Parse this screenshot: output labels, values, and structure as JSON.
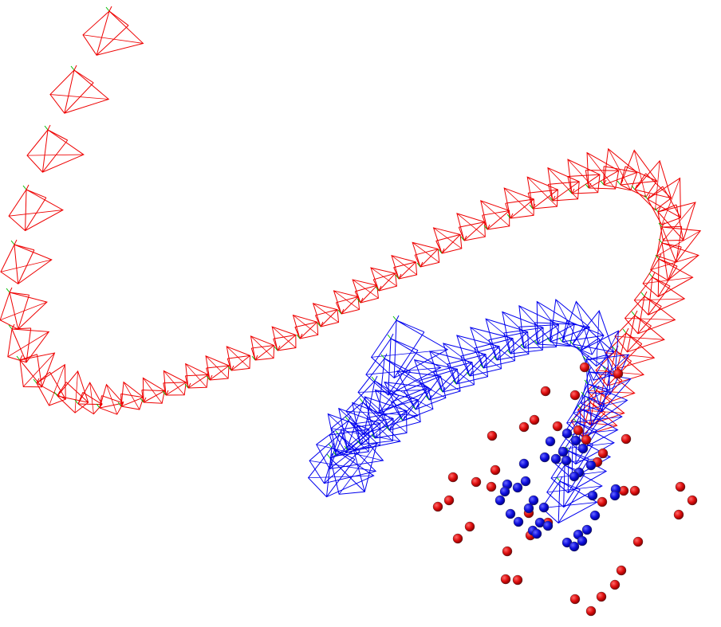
{
  "scene": {
    "background": "#ffffff",
    "colors": {
      "red": "#ee0000",
      "blue": "#0000ee",
      "axis_green": "#00bb00",
      "sphere_outline": "#333333"
    }
  }
}
